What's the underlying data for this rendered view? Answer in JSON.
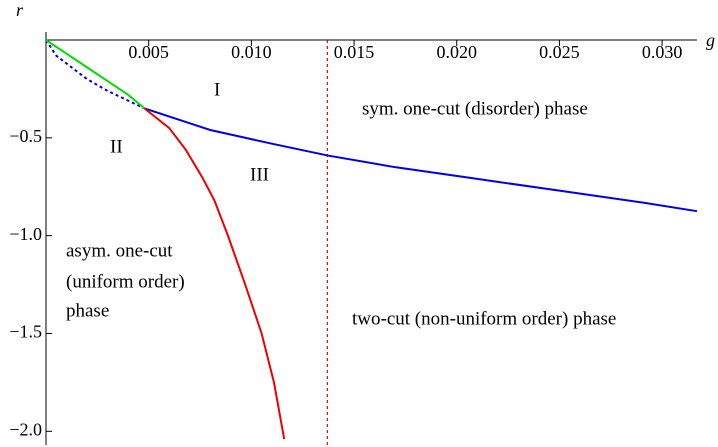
{
  "chart_data": {
    "type": "line",
    "x_label": "g",
    "y_label": "r",
    "xlim": [
      0,
      0.0317
    ],
    "ylim": [
      -2.07,
      0
    ],
    "xticks": [
      {
        "value": 0.005,
        "label": "0.005"
      },
      {
        "value": 0.01,
        "label": "0.010"
      },
      {
        "value": 0.015,
        "label": "0.015"
      },
      {
        "value": 0.02,
        "label": "0.020"
      },
      {
        "value": 0.025,
        "label": "0.025"
      },
      {
        "value": 0.03,
        "label": "0.030"
      }
    ],
    "yticks": [
      {
        "value": -0.5,
        "label": "−0.5"
      },
      {
        "value": -1.0,
        "label": "−1.0"
      },
      {
        "value": -1.5,
        "label": "−1.5"
      },
      {
        "value": -2.0,
        "label": "−2.0"
      }
    ],
    "series": [
      {
        "color": "#0000ee",
        "dashed": true,
        "x": [
          0,
          0.0005,
          0.001,
          0.002,
          0.003,
          0.004,
          0.0048
        ],
        "values": [
          0,
          -0.08,
          -0.12,
          -0.2,
          -0.26,
          -0.31,
          -0.35
        ]
      },
      {
        "color": "#00dd00",
        "dashed": false,
        "x": [
          0,
          0.001,
          0.002,
          0.003,
          0.004,
          0.0048
        ],
        "values": [
          0,
          -0.07,
          -0.14,
          -0.21,
          -0.28,
          -0.35
        ]
      },
      {
        "color": "#0000ee",
        "dashed": false,
        "x": [
          0.0048,
          0.008,
          0.011,
          0.0137,
          0.017,
          0.021,
          0.025,
          0.029,
          0.0317
        ],
        "values": [
          -0.35,
          -0.46,
          -0.53,
          -0.59,
          -0.65,
          -0.71,
          -0.77,
          -0.83,
          -0.875
        ]
      },
      {
        "color": "#ee0000",
        "dashed": false,
        "x": [
          0.0048,
          0.006,
          0.0068,
          0.0076,
          0.0082,
          0.00886,
          0.0097,
          0.0105,
          0.0111,
          0.0116
        ],
        "values": [
          -0.35,
          -0.45,
          -0.56,
          -0.7,
          -0.82,
          -1.0,
          -1.25,
          -1.5,
          -1.75,
          -2.04
        ]
      }
    ],
    "vline": {
      "x": 0.0137,
      "color": "#ee0000"
    },
    "annotations": [
      "I",
      "II",
      "III",
      "sym. one-cut (disorder) phase",
      "asym. one-cut",
      "(uniform order)",
      "phase",
      "two-cut (non-uniform order) phase"
    ]
  }
}
